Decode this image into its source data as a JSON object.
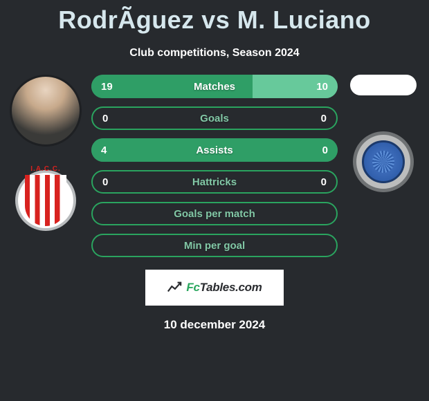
{
  "title": "RodrÃ­guez vs M. Luciano",
  "subtitle": "Club competitions, Season 2024",
  "colors": {
    "bg": "#272a2e",
    "title": "#d6e7ed",
    "bar_left": "#2f9e66",
    "bar_right": "#67c99b",
    "bar_track": "#32895d",
    "border": "#2aa45f",
    "empty_label": "#82c8a6"
  },
  "rows": [
    {
      "label": "Matches",
      "left": "19",
      "right": "10",
      "left_pct": 65.5,
      "right_pct": 34.5,
      "filled": true
    },
    {
      "label": "Goals",
      "left": "0",
      "right": "0",
      "left_pct": 0,
      "right_pct": 0,
      "filled": false
    },
    {
      "label": "Assists",
      "left": "4",
      "right": "0",
      "left_pct": 100,
      "right_pct": 0,
      "filled": true
    },
    {
      "label": "Hattricks",
      "left": "0",
      "right": "0",
      "left_pct": 0,
      "right_pct": 0,
      "filled": false
    },
    {
      "label": "Goals per match",
      "left": "",
      "right": "",
      "left_pct": 0,
      "right_pct": 0,
      "filled": false,
      "label_only": true
    },
    {
      "label": "Min per goal",
      "left": "",
      "right": "",
      "left_pct": 0,
      "right_pct": 0,
      "filled": false,
      "label_only": true
    }
  ],
  "footer": {
    "brand_prefix": "Fc",
    "brand_suffix": "Tables.com",
    "date": "10 december 2024"
  }
}
